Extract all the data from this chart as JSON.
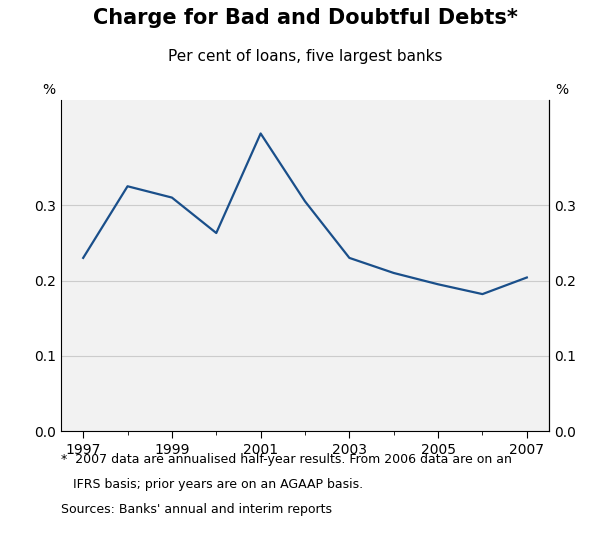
{
  "title": "Charge for Bad and Doubtful Debts*",
  "subtitle": "Per cent of loans, five largest banks",
  "footnote_line1": "*  2007 data are annualised half-year results. From 2006 data are on an",
  "footnote_line2": "   IFRS basis; prior years are on an AGAAP basis.",
  "footnote_line3": "Sources: Banks' annual and interim reports",
  "x": [
    1997,
    1998,
    1999,
    2000,
    2001,
    2002,
    2003,
    2004,
    2005,
    2006,
    2007
  ],
  "y": [
    0.23,
    0.325,
    0.31,
    0.263,
    0.395,
    0.305,
    0.23,
    0.21,
    0.195,
    0.182,
    0.204
  ],
  "line_color": "#1a4f8a",
  "line_width": 1.6,
  "xlim": [
    1996.5,
    2007.5
  ],
  "ylim": [
    0.0,
    0.44
  ],
  "yticks": [
    0.0,
    0.1,
    0.2,
    0.3
  ],
  "xticks": [
    1997,
    1999,
    2001,
    2003,
    2005,
    2007
  ],
  "grid_color": "#cccccc",
  "bg_color": "#f2f2f2",
  "title_fontsize": 15,
  "subtitle_fontsize": 11,
  "tick_fontsize": 10,
  "footnote_fontsize": 9,
  "pct_label_fontsize": 10
}
